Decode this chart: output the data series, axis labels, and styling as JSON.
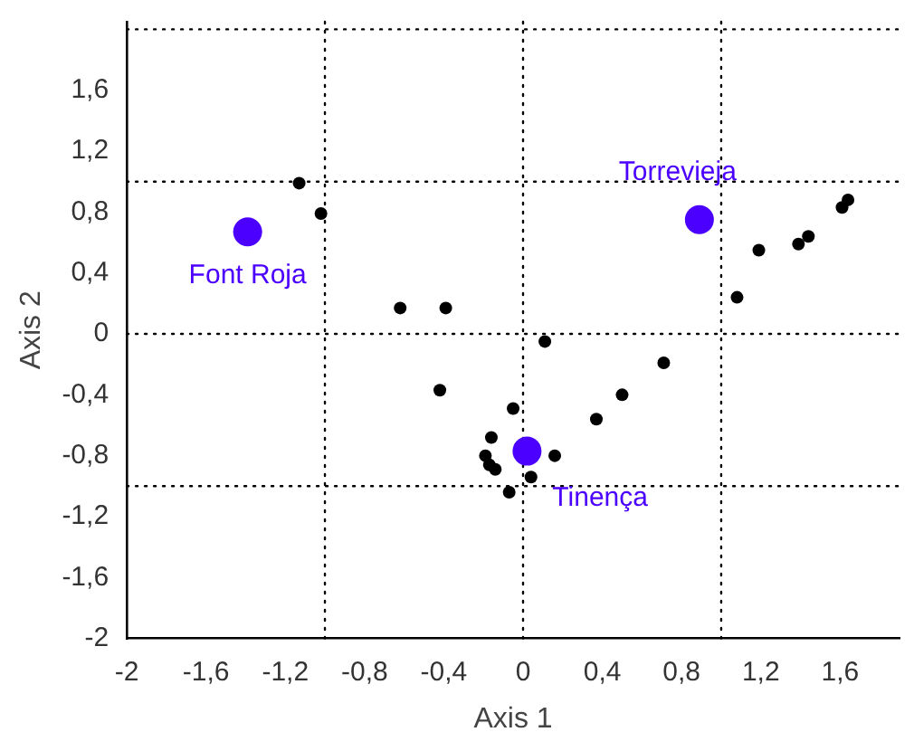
{
  "chart_data": {
    "type": "scatter",
    "xlabel": "Axis 1",
    "ylabel": "Axis 2",
    "xlim": [
      -2,
      1.9
    ],
    "ylim": [
      -2,
      2.05
    ],
    "xticks": [
      {
        "value": -2,
        "label": "-2"
      },
      {
        "value": -1.6,
        "label": "-1,6"
      },
      {
        "value": -1.2,
        "label": "-1,2"
      },
      {
        "value": -0.8,
        "label": "-0,8"
      },
      {
        "value": -0.4,
        "label": "-0,4"
      },
      {
        "value": 0,
        "label": "0"
      },
      {
        "value": 0.4,
        "label": "0,4"
      },
      {
        "value": 0.8,
        "label": "0,8"
      },
      {
        "value": 1.2,
        "label": "1,2"
      },
      {
        "value": 1.6,
        "label": "1,6"
      }
    ],
    "yticks": [
      {
        "value": -2,
        "label": "-2"
      },
      {
        "value": -1.6,
        "label": "-1,6"
      },
      {
        "value": -1.2,
        "label": "-1,2"
      },
      {
        "value": -0.8,
        "label": "-0,8"
      },
      {
        "value": -0.4,
        "label": "-0,4"
      },
      {
        "value": 0,
        "label": "0"
      },
      {
        "value": 0.4,
        "label": "0,4"
      },
      {
        "value": 0.8,
        "label": "0,8"
      },
      {
        "value": 1.2,
        "label": "1,2"
      },
      {
        "value": 1.6,
        "label": "1,6"
      }
    ],
    "grid": false,
    "legend": false,
    "marker": "circle",
    "series": [
      {
        "color": "#000000",
        "x": [
          -1.13,
          -1.02,
          -0.62,
          -0.39,
          0.11,
          0.71,
          1.19,
          1.08,
          1.39,
          1.44,
          1.61,
          1.64,
          -0.42,
          0.5,
          0.37,
          -0.05,
          -0.16,
          -0.19,
          -0.17,
          -0.14,
          0.16,
          0.04,
          -0.07
        ],
        "values": [
          0.99,
          0.79,
          0.17,
          0.17,
          -0.05,
          -0.19,
          0.55,
          0.24,
          0.59,
          0.64,
          0.83,
          0.88,
          -0.37,
          -0.4,
          -0.56,
          -0.49,
          -0.68,
          -0.8,
          -0.86,
          -0.89,
          -0.8,
          -0.94,
          -1.04
        ]
      },
      {
        "color": "#4b00ff",
        "x": [
          -1.39,
          0.89,
          0.02
        ],
        "values": [
          0.67,
          0.75,
          -0.77
        ]
      }
    ],
    "ref_lines": [
      {
        "axis": "x",
        "value": -1,
        "line_style": "dotted",
        "color": "#000000"
      },
      {
        "axis": "x",
        "value": 0,
        "line_style": "dotted",
        "color": "#000000"
      },
      {
        "axis": "x",
        "value": 1,
        "line_style": "dotted",
        "color": "#000000"
      },
      {
        "axis": "y",
        "value": -1,
        "line_style": "dotted",
        "color": "#000000"
      },
      {
        "axis": "y",
        "value": 0,
        "line_style": "dotted",
        "color": "#000000"
      },
      {
        "axis": "y",
        "value": 1,
        "line_style": "dotted",
        "color": "#000000"
      },
      {
        "axis": "y",
        "value": 2,
        "line_style": "dotted",
        "color": "#000000"
      }
    ],
    "annotations": [
      {
        "text": "Font Roja",
        "x": -1.39,
        "y": 0.67
      },
      {
        "text": "Torrevieja",
        "x": 0.89,
        "y": 0.75
      },
      {
        "text": "Tinença",
        "x": 0.02,
        "y": -0.77
      }
    ]
  }
}
